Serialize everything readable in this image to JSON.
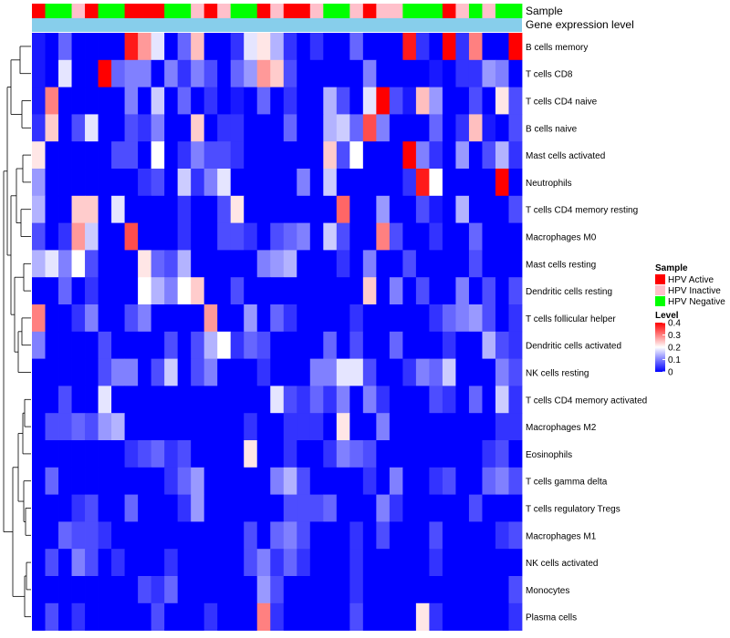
{
  "chart_data": {
    "type": "heatmap",
    "annotation_labels": [
      "Sample",
      "Gene expression level"
    ],
    "rows": [
      "B cells memory",
      "T cells CD8",
      "T cells CD4 naive",
      "B cells naive",
      "Mast cells activated",
      "Neutrophils",
      "T cells CD4 memory resting",
      "Macrophages M0",
      "Mast cells resting",
      "Dendritic cells resting",
      "T cells follicular helper",
      "Dendritic cells activated",
      "NK cells resting",
      "T cells CD4 memory activated",
      "Macrophages M2",
      "Eosinophils",
      "T cells gamma delta",
      "T cells regulatory  Tregs",
      "Macrophages M1",
      "NK cells activated",
      "Monocytes",
      "Plasma cells"
    ],
    "sample_groups": [
      "A",
      "N",
      "N",
      "I",
      "A",
      "N",
      "N",
      "A",
      "A",
      "A",
      "N",
      "N",
      "I",
      "A",
      "I",
      "N",
      "N",
      "A",
      "I",
      "A",
      "A",
      "I",
      "N",
      "N",
      "I",
      "A",
      "I",
      "I",
      "N",
      "N",
      "N",
      "A",
      "I",
      "N",
      "I",
      "N",
      "N"
    ],
    "expression_level_color": "#87CEEB",
    "legend_sample": {
      "title": "Sample",
      "items": [
        {
          "key": "A",
          "label": "HPV Active",
          "color": "#FF0000"
        },
        {
          "key": "I",
          "label": "HPV Inactive",
          "color": "#FFC0CB"
        },
        {
          "key": "N",
          "label": "HPV Negative",
          "color": "#00FF00"
        }
      ]
    },
    "legend_level": {
      "title": "Level",
      "ticks": [
        "0.4",
        "0.3",
        "0.2",
        "0.1",
        "0"
      ],
      "tick_values": [
        0.4,
        0.3,
        0.2,
        0.1,
        0
      ],
      "range": [
        0,
        0.4
      ],
      "colors": [
        "#0000FF",
        "#FFFFFF",
        "#FF0000"
      ]
    },
    "values": [
      [
        0.02,
        0.0,
        0.08,
        0.0,
        0.0,
        0.0,
        0.0,
        0.38,
        0.28,
        0.18,
        0.0,
        0.08,
        0.25,
        0.0,
        0.0,
        0.04,
        0.18,
        0.22,
        0.14,
        0.04,
        0.0,
        0.04,
        0.0,
        0.0,
        0.08,
        0.0,
        0.0,
        0.0,
        0.38,
        0.04,
        0.0,
        0.4,
        0.04,
        0.3,
        0.0,
        0.0,
        0.4
      ],
      [
        0.02,
        0.0,
        0.18,
        0.0,
        0.0,
        0.4,
        0.08,
        0.1,
        0.1,
        0.0,
        0.1,
        0.04,
        0.1,
        0.06,
        0.0,
        0.08,
        0.12,
        0.28,
        0.24,
        0.06,
        0.0,
        0.0,
        0.0,
        0.0,
        0.0,
        0.1,
        0.0,
        0.0,
        0.0,
        0.0,
        0.02,
        0.0,
        0.04,
        0.04,
        0.12,
        0.1,
        0.0
      ],
      [
        0.02,
        0.3,
        0.0,
        0.0,
        0.0,
        0.0,
        0.0,
        0.1,
        0.0,
        0.16,
        0.0,
        0.08,
        0.0,
        0.04,
        0.0,
        0.02,
        0.0,
        0.08,
        0.0,
        0.04,
        0.0,
        0.0,
        0.14,
        0.06,
        0.0,
        0.18,
        0.4,
        0.06,
        0.02,
        0.25,
        0.12,
        0.0,
        0.0,
        0.06,
        0.0,
        0.22,
        0.06
      ],
      [
        0.04,
        0.24,
        0.0,
        0.06,
        0.18,
        0.0,
        0.0,
        0.06,
        0.04,
        0.1,
        0.0,
        0.0,
        0.24,
        0.0,
        0.04,
        0.04,
        0.0,
        0.0,
        0.0,
        0.08,
        0.0,
        0.0,
        0.14,
        0.16,
        0.08,
        0.34,
        0.1,
        0.0,
        0.0,
        0.0,
        0.08,
        0.0,
        0.04,
        0.25,
        0.02,
        0.0,
        0.06
      ],
      [
        0.22,
        0.0,
        0.0,
        0.0,
        0.0,
        0.0,
        0.06,
        0.06,
        0.0,
        0.2,
        0.0,
        0.04,
        0.1,
        0.06,
        0.06,
        0.04,
        0.0,
        0.0,
        0.0,
        0.0,
        0.0,
        0.0,
        0.24,
        0.06,
        0.2,
        0.0,
        0.0,
        0.0,
        0.4,
        0.1,
        0.04,
        0.0,
        0.12,
        0.0,
        0.06,
        0.14,
        0.04
      ],
      [
        0.12,
        0.0,
        0.0,
        0.0,
        0.0,
        0.0,
        0.0,
        0.0,
        0.04,
        0.06,
        0.0,
        0.16,
        0.04,
        0.1,
        0.18,
        0.0,
        0.0,
        0.0,
        0.0,
        0.0,
        0.1,
        0.0,
        0.16,
        0.0,
        0.0,
        0.0,
        0.0,
        0.0,
        0.04,
        0.38,
        0.2,
        0.0,
        0.0,
        0.0,
        0.0,
        0.4,
        0.0
      ],
      [
        0.14,
        0.0,
        0.0,
        0.24,
        0.24,
        0.0,
        0.18,
        0.0,
        0.0,
        0.0,
        0.0,
        0.04,
        0.0,
        0.0,
        0.06,
        0.22,
        0.0,
        0.0,
        0.0,
        0.0,
        0.0,
        0.0,
        0.0,
        0.32,
        0.0,
        0.0,
        0.12,
        0.0,
        0.0,
        0.06,
        0.02,
        0.0,
        0.14,
        0.0,
        0.0,
        0.0,
        0.06
      ],
      [
        0.06,
        0.0,
        0.04,
        0.28,
        0.16,
        0.0,
        0.0,
        0.34,
        0.0,
        0.0,
        0.0,
        0.04,
        0.0,
        0.0,
        0.06,
        0.06,
        0.04,
        0.0,
        0.06,
        0.08,
        0.1,
        0.0,
        0.16,
        0.06,
        0.0,
        0.0,
        0.3,
        0.06,
        0.0,
        0.0,
        0.04,
        0.0,
        0.0,
        0.08,
        0.0,
        0.0,
        0.0
      ],
      [
        0.14,
        0.18,
        0.1,
        0.2,
        0.06,
        0.0,
        0.0,
        0.0,
        0.22,
        0.08,
        0.06,
        0.14,
        0.0,
        0.0,
        0.0,
        0.0,
        0.0,
        0.1,
        0.12,
        0.14,
        0.0,
        0.0,
        0.0,
        0.04,
        0.0,
        0.1,
        0.0,
        0.0,
        0.06,
        0.0,
        0.0,
        0.0,
        0.0,
        0.06,
        0.0,
        0.0,
        0.0
      ],
      [
        0.0,
        0.0,
        0.08,
        0.0,
        0.04,
        0.0,
        0.0,
        0.0,
        0.2,
        0.14,
        0.1,
        0.2,
        0.24,
        0.0,
        0.0,
        0.06,
        0.0,
        0.0,
        0.0,
        0.0,
        0.0,
        0.0,
        0.0,
        0.0,
        0.0,
        0.24,
        0.0,
        0.1,
        0.0,
        0.06,
        0.0,
        0.0,
        0.1,
        0.0,
        0.06,
        0.0,
        0.06
      ],
      [
        0.3,
        0.0,
        0.0,
        0.04,
        0.1,
        0.0,
        0.0,
        0.06,
        0.1,
        0.0,
        0.0,
        0.0,
        0.0,
        0.28,
        0.0,
        0.0,
        0.12,
        0.0,
        0.08,
        0.04,
        0.0,
        0.0,
        0.0,
        0.0,
        0.04,
        0.0,
        0.0,
        0.0,
        0.0,
        0.0,
        0.04,
        0.08,
        0.1,
        0.12,
        0.06,
        0.0,
        0.04
      ],
      [
        0.1,
        0.0,
        0.0,
        0.0,
        0.0,
        0.06,
        0.0,
        0.0,
        0.0,
        0.0,
        0.06,
        0.0,
        0.06,
        0.14,
        0.2,
        0.04,
        0.08,
        0.06,
        0.0,
        0.0,
        0.0,
        0.0,
        0.08,
        0.0,
        0.06,
        0.0,
        0.0,
        0.08,
        0.0,
        0.0,
        0.0,
        0.04,
        0.0,
        0.0,
        0.14,
        0.06,
        0.04
      ],
      [
        0.0,
        0.0,
        0.0,
        0.0,
        0.0,
        0.06,
        0.1,
        0.1,
        0.0,
        0.06,
        0.16,
        0.0,
        0.06,
        0.1,
        0.0,
        0.0,
        0.0,
        0.04,
        0.0,
        0.0,
        0.0,
        0.1,
        0.1,
        0.18,
        0.18,
        0.06,
        0.0,
        0.0,
        0.04,
        0.1,
        0.08,
        0.16,
        0.0,
        0.0,
        0.0,
        0.1,
        0.06
      ],
      [
        0.0,
        0.0,
        0.06,
        0.0,
        0.0,
        0.18,
        0.0,
        0.0,
        0.0,
        0.0,
        0.0,
        0.0,
        0.0,
        0.0,
        0.0,
        0.0,
        0.0,
        0.0,
        0.18,
        0.06,
        0.04,
        0.08,
        0.04,
        0.1,
        0.0,
        0.1,
        0.04,
        0.0,
        0.0,
        0.0,
        0.06,
        0.04,
        0.0,
        0.08,
        0.0,
        0.16,
        0.04
      ],
      [
        0.0,
        0.06,
        0.06,
        0.08,
        0.06,
        0.12,
        0.14,
        0.0,
        0.0,
        0.0,
        0.0,
        0.0,
        0.0,
        0.0,
        0.0,
        0.0,
        0.04,
        0.0,
        0.0,
        0.04,
        0.04,
        0.04,
        0.0,
        0.22,
        0.0,
        0.0,
        0.1,
        0.0,
        0.0,
        0.0,
        0.0,
        0.0,
        0.0,
        0.0,
        0.0,
        0.04,
        0.04
      ],
      [
        0.0,
        0.0,
        0.0,
        0.0,
        0.0,
        0.0,
        0.0,
        0.04,
        0.06,
        0.08,
        0.04,
        0.06,
        0.0,
        0.0,
        0.0,
        0.0,
        0.22,
        0.0,
        0.0,
        0.04,
        0.0,
        0.0,
        0.04,
        0.1,
        0.08,
        0.06,
        0.0,
        0.0,
        0.0,
        0.0,
        0.0,
        0.0,
        0.0,
        0.0,
        0.04,
        0.06,
        0.0
      ],
      [
        0.0,
        0.08,
        0.0,
        0.0,
        0.0,
        0.0,
        0.0,
        0.0,
        0.0,
        0.0,
        0.04,
        0.08,
        0.12,
        0.0,
        0.0,
        0.0,
        0.0,
        0.0,
        0.1,
        0.14,
        0.06,
        0.0,
        0.0,
        0.0,
        0.0,
        0.04,
        0.0,
        0.1,
        0.0,
        0.0,
        0.04,
        0.06,
        0.0,
        0.0,
        0.08,
        0.1,
        0.06
      ],
      [
        0.0,
        0.0,
        0.0,
        0.04,
        0.06,
        0.0,
        0.0,
        0.08,
        0.0,
        0.0,
        0.0,
        0.04,
        0.12,
        0.0,
        0.0,
        0.0,
        0.0,
        0.0,
        0.0,
        0.06,
        0.06,
        0.06,
        0.08,
        0.0,
        0.0,
        0.0,
        0.1,
        0.04,
        0.0,
        0.0,
        0.0,
        0.0,
        0.0,
        0.06,
        0.0,
        0.0,
        0.0
      ],
      [
        0.0,
        0.0,
        0.08,
        0.06,
        0.06,
        0.04,
        0.0,
        0.0,
        0.0,
        0.0,
        0.0,
        0.0,
        0.0,
        0.0,
        0.0,
        0.0,
        0.06,
        0.0,
        0.08,
        0.1,
        0.06,
        0.0,
        0.0,
        0.0,
        0.04,
        0.0,
        0.06,
        0.0,
        0.0,
        0.0,
        0.06,
        0.0,
        0.0,
        0.0,
        0.0,
        0.04,
        0.06
      ],
      [
        0.0,
        0.06,
        0.0,
        0.1,
        0.06,
        0.0,
        0.04,
        0.0,
        0.0,
        0.0,
        0.04,
        0.0,
        0.0,
        0.0,
        0.0,
        0.0,
        0.06,
        0.1,
        0.04,
        0.08,
        0.04,
        0.0,
        0.0,
        0.0,
        0.04,
        0.0,
        0.0,
        0.0,
        0.0,
        0.0,
        0.04,
        0.0,
        0.0,
        0.0,
        0.0,
        0.0,
        0.0
      ],
      [
        0.0,
        0.0,
        0.0,
        0.0,
        0.0,
        0.0,
        0.0,
        0.0,
        0.06,
        0.04,
        0.08,
        0.0,
        0.0,
        0.0,
        0.0,
        0.0,
        0.0,
        0.12,
        0.06,
        0.0,
        0.0,
        0.0,
        0.0,
        0.0,
        0.04,
        0.0,
        0.0,
        0.0,
        0.0,
        0.0,
        0.0,
        0.0,
        0.0,
        0.0,
        0.0,
        0.0,
        0.06
      ],
      [
        0.0,
        0.06,
        0.0,
        0.04,
        0.0,
        0.0,
        0.0,
        0.0,
        0.0,
        0.06,
        0.0,
        0.0,
        0.0,
        0.04,
        0.0,
        0.0,
        0.0,
        0.3,
        0.04,
        0.0,
        0.0,
        0.0,
        0.0,
        0.0,
        0.06,
        0.0,
        0.0,
        0.0,
        0.0,
        0.22,
        0.04,
        0.0,
        0.0,
        0.0,
        0.0,
        0.0,
        0.04
      ]
    ]
  }
}
